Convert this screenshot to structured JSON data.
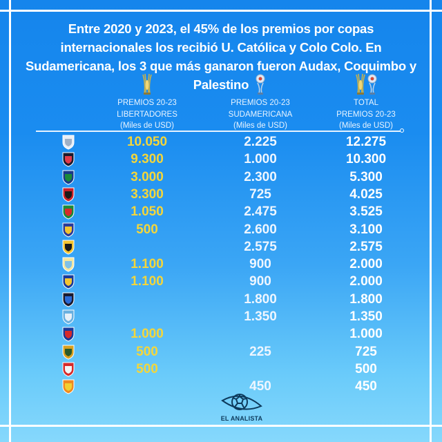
{
  "title": "Entre 2020 y 2023, el 45% de los premios por copas internacionales los recibió U. Católica y Colo Colo. En Sudamericana, los 3 que más ganaron fueron Audax, Coquimbo y Palestino",
  "columns": [
    {
      "line1": "PREMIOS 20-23",
      "line2": "LIBERTADORES",
      "line3": "(Miles de USD)",
      "icon": "libertadores-trophy-icon"
    },
    {
      "line1": "PREMIOS 20-23",
      "line2": "SUDAMERICANA",
      "line3": "(Miles de USD)",
      "icon": "sudamericana-trophy-icon"
    },
    {
      "line1": "TOTAL",
      "line2": "PREMIOS 20-23",
      "line3": "(Miles de USD)",
      "icon": "both-trophies-icon"
    }
  ],
  "colors": {
    "libertadores_value": "#f4d63a",
    "sudamericana_value": "#eef6ff",
    "total_value": "#ffffff",
    "bg_top": "#1585ec",
    "bg_bottom": "#86d8fc"
  },
  "rows": [
    {
      "club": "U. Católica",
      "icon": "u-catolica-crest-icon",
      "lib": "10.050",
      "sud": "2.225",
      "total": "12.275"
    },
    {
      "club": "Colo Colo",
      "icon": "colo-colo-crest-icon",
      "lib": "9.300",
      "sud": "1.000",
      "total": "10.300"
    },
    {
      "club": "Unión Española",
      "icon": "union-espanola-crest-icon",
      "lib": "3.000",
      "sud": "2.300",
      "total": "5.300"
    },
    {
      "club": "Curicó Unido",
      "icon": "curico-unido-crest-icon",
      "lib": "3.300",
      "sud": "725",
      "total": "4.025"
    },
    {
      "club": "Palestino",
      "icon": "palestino-crest-icon",
      "lib": "1.050",
      "sud": "2.475",
      "total": "3.525"
    },
    {
      "club": "Audax Italiano",
      "icon": "audax-italiano-crest-icon",
      "lib": "500",
      "sud": "2.600",
      "total": "3.100"
    },
    {
      "club": "Coquimbo Unido",
      "icon": "coquimbo-unido-crest-icon",
      "lib": "",
      "sud": "2.575",
      "total": "2.575"
    },
    {
      "club": "Magallanes",
      "icon": "magallanes-crest-icon",
      "lib": "1.100",
      "sud": "900",
      "total": "2.000"
    },
    {
      "club": "Everton",
      "icon": "everton-crest-icon",
      "lib": "1.100",
      "sud": "900",
      "total": "2.000"
    },
    {
      "club": "Huachipato",
      "icon": "huachipato-crest-icon",
      "lib": "",
      "sud": "1.800",
      "total": "1.800"
    },
    {
      "club": "Antofagasta",
      "icon": "antofagasta-crest-icon",
      "lib": "",
      "sud": "1.350",
      "total": "1.350"
    },
    {
      "club": "U. de Chile",
      "icon": "u-de-chile-crest-icon",
      "lib": "1.000",
      "sud": "",
      "total": "1.000"
    },
    {
      "club": "Unión La Calera",
      "icon": "union-la-calera-crest-icon",
      "lib": "500",
      "sud": "225",
      "total": "725"
    },
    {
      "club": "Ñublense",
      "icon": "nublense-crest-icon",
      "lib": "500",
      "sud": "",
      "total": "500"
    },
    {
      "club": "Cobreloa",
      "icon": "cobreloa-crest-icon",
      "lib": "",
      "sud": "450",
      "total": "450"
    }
  ],
  "brand": {
    "name": "EL ANALISTA",
    "icon": "el-analista-eye-ball-logo-icon"
  },
  "chart_data": {
    "type": "table",
    "title": "Entre 2020 y 2023, el 45% de los premios por copas internacionales los recibió U. Católica y Colo Colo. En Sudamericana, los 3 que más ganaron fueron Audax, Coquimbo y Palestino",
    "columns": [
      "PREMIOS 20-23 LIBERTADORES (Miles de USD)",
      "PREMIOS 20-23 SUDAMERICANA (Miles de USD)",
      "TOTAL PREMIOS 20-23 (Miles de USD)"
    ],
    "categories": [
      "U. Católica",
      "Colo Colo",
      "Unión Española",
      "Curicó Unido",
      "Palestino",
      "Audax Italiano",
      "Coquimbo Unido",
      "Magallanes",
      "Everton",
      "Huachipato",
      "Antofagasta",
      "U. de Chile",
      "Unión La Calera",
      "Ñublense",
      "Cobreloa"
    ],
    "series": [
      {
        "name": "Libertadores",
        "values": [
          10050,
          9300,
          3000,
          3300,
          1050,
          500,
          null,
          1100,
          1100,
          null,
          null,
          1000,
          500,
          500,
          null
        ]
      },
      {
        "name": "Sudamericana",
        "values": [
          2225,
          1000,
          2300,
          725,
          2475,
          2600,
          2575,
          900,
          900,
          1800,
          1350,
          null,
          225,
          null,
          450
        ]
      },
      {
        "name": "Total",
        "values": [
          12275,
          10300,
          5300,
          4025,
          3525,
          3100,
          2575,
          2000,
          2000,
          1800,
          1350,
          1000,
          725,
          500,
          450
        ]
      }
    ],
    "units": "Miles de USD"
  }
}
